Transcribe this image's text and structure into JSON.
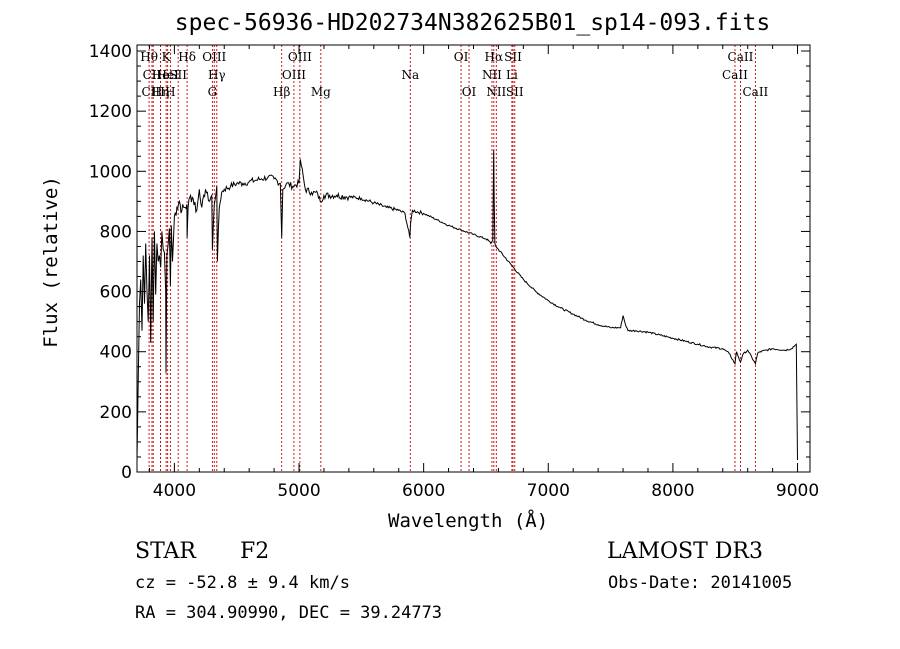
{
  "chart_data": {
    "type": "line",
    "title": "spec-56936-HD202734N382625B01_sp14-093.fits",
    "xlabel": "Wavelength (Å)",
    "ylabel": "Flux (relative)",
    "xlim": [
      3700,
      9100
    ],
    "ylim": [
      0,
      1420
    ],
    "x_ticks": [
      4000,
      5000,
      6000,
      7000,
      8000,
      9000
    ],
    "y_ticks": [
      0,
      200,
      400,
      600,
      800,
      1000,
      1200,
      1400
    ],
    "grid": false,
    "series": [
      {
        "name": "spectrum",
        "x": [
          3700,
          3710,
          3720,
          3730,
          3740,
          3750,
          3760,
          3770,
          3780,
          3790,
          3800,
          3810,
          3820,
          3830,
          3840,
          3850,
          3860,
          3870,
          3880,
          3890,
          3900,
          3910,
          3920,
          3930,
          3933,
          3940,
          3950,
          3960,
          3968,
          3975,
          3985,
          4000,
          4020,
          4040,
          4060,
          4080,
          4100,
          4102,
          4110,
          4130,
          4150,
          4180,
          4200,
          4220,
          4250,
          4280,
          4300,
          4305,
          4320,
          4340,
          4345,
          4360,
          4380,
          4400,
          4450,
          4500,
          4550,
          4600,
          4650,
          4700,
          4750,
          4800,
          4850,
          4861,
          4870,
          4900,
          4950,
          5000,
          5010,
          5050,
          5100,
          5150,
          5170,
          5200,
          5300,
          5400,
          5500,
          5600,
          5700,
          5800,
          5850,
          5889,
          5896,
          5910,
          6000,
          6100,
          6200,
          6300,
          6400,
          6500,
          6520,
          6540,
          6555,
          6562,
          6566,
          6572,
          6580,
          6600,
          6700,
          6800,
          6900,
          7000,
          7100,
          7200,
          7300,
          7400,
          7500,
          7580,
          7600,
          7620,
          7640,
          7700,
          7800,
          7900,
          8000,
          8100,
          8200,
          8300,
          8400,
          8450,
          8498,
          8510,
          8542,
          8560,
          8600,
          8662,
          8680,
          8700,
          8800,
          8900,
          8950,
          8990,
          9000
        ],
        "values": [
          40,
          300,
          560,
          640,
          470,
          720,
          560,
          760,
          600,
          500,
          720,
          430,
          780,
          500,
          800,
          590,
          760,
          700,
          720,
          680,
          800,
          740,
          730,
          600,
          330,
          720,
          760,
          810,
          620,
          820,
          700,
          850,
          880,
          900,
          870,
          880,
          890,
          780,
          880,
          920,
          910,
          870,
          940,
          880,
          940,
          900,
          920,
          740,
          890,
          950,
          700,
          880,
          930,
          940,
          950,
          960,
          960,
          965,
          970,
          975,
          980,
          975,
          960,
          780,
          940,
          960,
          950,
          960,
          1040,
          940,
          930,
          925,
          900,
          920,
          920,
          915,
          910,
          895,
          880,
          870,
          860,
          780,
          830,
          870,
          860,
          840,
          820,
          805,
          790,
          775,
          770,
          760,
          770,
          1070,
          900,
          760,
          750,
          740,
          690,
          640,
          600,
          570,
          545,
          525,
          505,
          490,
          480,
          480,
          520,
          490,
          470,
          470,
          465,
          455,
          445,
          435,
          425,
          415,
          410,
          395,
          360,
          400,
          365,
          390,
          405,
          360,
          395,
          400,
          410,
          405,
          410,
          425,
          40
        ]
      }
    ],
    "line_markers": [
      {
        "label": "Hθ",
        "x": 3797,
        "row": 0
      },
      {
        "label": "CII",
        "x": 3820,
        "row": 1
      },
      {
        "label": "CIII",
        "x": 3830,
        "row": 2
      },
      {
        "label": "He",
        "x": 3889,
        "row": 1
      },
      {
        "label": "Hη",
        "x": 3889,
        "row": 2
      },
      {
        "label": "K",
        "x": 3934,
        "row": 0
      },
      {
        "label": "HeI",
        "x": 3946,
        "row": 1
      },
      {
        "label": "H",
        "x": 3968,
        "row": 2
      },
      {
        "label": "SII",
        "x": 4030,
        "row": 1
      },
      {
        "label": "Hδ",
        "x": 4102,
        "row": 0
      },
      {
        "label": "OIII",
        "x": 4320,
        "row": 0
      },
      {
        "label": "Hγ",
        "x": 4340,
        "row": 1
      },
      {
        "label": "G",
        "x": 4305,
        "row": 2
      },
      {
        "label": "Hβ",
        "x": 4861,
        "row": 2
      },
      {
        "label": "OIII",
        "x": 4959,
        "row": 1
      },
      {
        "label": "OIII",
        "x": 5007,
        "row": 0
      },
      {
        "label": "Mg",
        "x": 5175,
        "row": 2
      },
      {
        "label": "Na",
        "x": 5893,
        "row": 1
      },
      {
        "label": "OI",
        "x": 6300,
        "row": 0
      },
      {
        "label": "OI",
        "x": 6364,
        "row": 2
      },
      {
        "label": "NII",
        "x": 6548,
        "row": 1
      },
      {
        "label": "NII",
        "x": 6583,
        "row": 2
      },
      {
        "label": "Hα",
        "x": 6563,
        "row": 0
      },
      {
        "label": "Li",
        "x": 6708,
        "row": 1
      },
      {
        "label": "SII",
        "x": 6717,
        "row": 0
      },
      {
        "label": "SII",
        "x": 6731,
        "row": 2
      },
      {
        "label": "CaII",
        "x": 8498,
        "row": 1
      },
      {
        "label": "CaII",
        "x": 8542,
        "row": 0
      },
      {
        "label": "CaII",
        "x": 8662,
        "row": 2
      }
    ],
    "marker_color": "#cc0000"
  },
  "info": {
    "object_class": "STAR",
    "subclass": "F2",
    "survey": "LAMOST DR3",
    "cz": "cz = -52.8 ± 9.4 km/s",
    "obs_date": "Obs-Date: 20141005",
    "coords": "RA = 304.90990, DEC =  39.24773"
  }
}
